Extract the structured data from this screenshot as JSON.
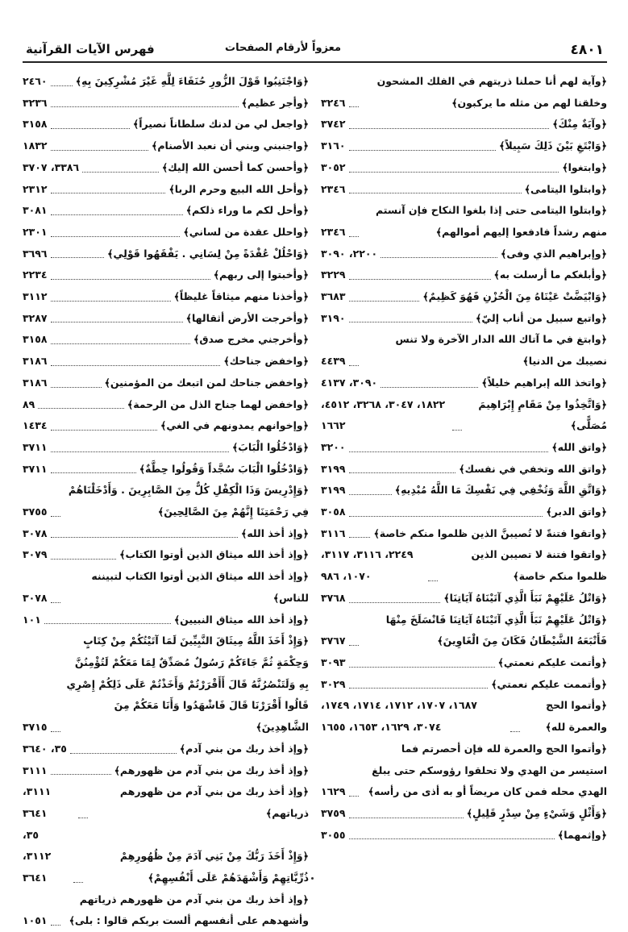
{
  "header": {
    "page_number": "٤٨٠١",
    "subtitle": "معزواً لأرقام الصفحات",
    "title": "فهرس الآيات القرآنية"
  },
  "right_column": [
    {
      "verse": "﴿وآية لهم أنا حملنا ذريتهم في الفلك المشحون وخلقنا لهم من مثله ما يركبون﴾",
      "pages": "٣٢٤٦"
    },
    {
      "verse": "﴿وآيَةٌ مِنْكَ﴾",
      "pages": "٣٧٤٢"
    },
    {
      "verse": "﴿وَابْتَغِ بَيْنَ ذَلِكَ سَبِيلاً﴾",
      "pages": "٣١٦٠"
    },
    {
      "verse": "﴿وابتغوا﴾",
      "pages": "٣٠٥٢"
    },
    {
      "verse": "﴿وابتلوا اليتامى﴾",
      "pages": "٢٣٤٦"
    },
    {
      "verse": "﴿وابتلوا اليتامى حتى إذا بلغوا النكاح فإن آنستم منهم رشداً فادفعوا إليهم أموالهم﴾",
      "pages": "٢٣٤٦"
    },
    {
      "verse": "﴿وإبراهيم الذي وفى﴾",
      "pages": "٢٢٠٠، ٣٠٩٠"
    },
    {
      "verse": "﴿وأبلغكم ما أرسلت به﴾",
      "pages": "٣٢٢٩"
    },
    {
      "verse": "﴿وَابْيَضَّتْ عَيْنَاهُ مِنَ الْحُزْنِ فَهُوَ كَظِيمٌ﴾",
      "pages": "٣٦٨٣"
    },
    {
      "verse": "﴿واتبع سبيل من أناب إليّ﴾",
      "pages": "٣١٩٠"
    },
    {
      "verse": "﴿وابتغ في ما آتاك الله الدار الآخرة ولا تنس نصيبك من الدنيا﴾",
      "pages": "٤٤٣٩"
    },
    {
      "verse": "﴿واتخذ الله إبراهيم خليلاً﴾",
      "pages": "٣٠٩٠، ٤١٣٧"
    },
    {
      "verse": "﴿وَاتَّخِذُوا مِنْ مَقَامِ إِبْرَاهِيمَ مُصَلًّى﴾",
      "pages": "١٨٢٢، ٣٠٤٧، ٣٢٦٨، ٤٥١٢، ١٦٦٢"
    },
    {
      "verse": "﴿واتق الله﴾",
      "pages": "٣٢٠٠"
    },
    {
      "verse": "﴿واتق الله وتخفي في نفسك﴾",
      "pages": "٣١٩٩"
    },
    {
      "verse": "﴿وَاتَّقِ اللَّهَ وَتُخْفِي فِي نَفْسِكَ مَا اللَّهُ مُبْدِيهِ﴾",
      "pages": "٣١٩٩"
    },
    {
      "verse": "﴿واتق الدبر﴾",
      "pages": "٣٠٥٨"
    },
    {
      "verse": "﴿واتقوا فتنةً لا تُصيبنَّ الذين ظلموا منكم خاصة﴾",
      "pages": "٣١١٦"
    },
    {
      "verse": "﴿واتقوا فتنة لا تصيبن الذين ظلموا منكم خاصة﴾",
      "pages": "٢٢٤٩، ٣١١٦، ٣١١٧، ١٠٧٠، ٩٨٦"
    },
    {
      "verse": "﴿وَاتْلُ عَلَيْهِمْ نَبَأَ الَّذِي آتَيْنَاهُ آيَاتِنَا﴾",
      "pages": "٣٧٦٨"
    },
    {
      "verse": "﴿وَاتْلُ عَلَيْهِمْ نَبَأَ الَّذِي آتَيْنَاهُ آيَاتِنَا فَانْسَلَخَ مِنْهَا فَأَتْبَعَهُ الشَّيْطَانُ فَكَانَ مِنَ الْغَاوِينَ﴾",
      "pages": "٣٧٦٧"
    },
    {
      "verse": "﴿وأتمت عليكم نعمتي﴾",
      "pages": "٣٠٩٣"
    },
    {
      "verse": "﴿وأتممت عليكم نعمتي﴾",
      "pages": "٣٠٢٩"
    },
    {
      "verse": "﴿وأتموا الحج والعمرة لله﴾",
      "pages": "١٦٨٧، ١٧٠٧، ١٧١٢، ١٧١٤، ١٧٤٩، ٣٠٧٤، ١٦٢٩، ١٦٥٣، ١٦٥٥"
    },
    {
      "verse": "﴿وأتموا الحج والعمرة لله فإن أحصرتم فما استيسر من الهدي ولا تحلقوا رؤوسكم حتى يبلغ الهدي محله فمن كان مريضاً أو به أذى من رأسه﴾",
      "pages": "١٦٢٩"
    },
    {
      "verse": "﴿وَأَثْلٍ وَشَيْءٍ مِنْ سِدْرٍ قَلِيلٍ﴾",
      "pages": "٣٧٥٩"
    },
    {
      "verse": "﴿وإثمهما﴾",
      "pages": "٣٠٥٥"
    }
  ],
  "left_column": [
    {
      "verse": "﴿وَاجْتَنِبُوا قَوْلَ الزُّورِ حُنَفَاءَ لِلَّهِ غَيْرَ مُشْرِكِينَ بِهِ﴾",
      "pages": "٢٤٦٠"
    },
    {
      "verse": "﴿وأجر عظيم﴾",
      "pages": "٣٢٣٦"
    },
    {
      "verse": "﴿واجعل لي من لدنك سلطاناً نصيراً﴾",
      "pages": "٣١٥٨"
    },
    {
      "verse": "﴿واجنبني وبني أن نعبد الأصنام﴾",
      "pages": "١٨٣٢"
    },
    {
      "verse": "﴿وأحسن كما أحسن الله إليك﴾",
      "pages": "٣٣٨٦، ٣٧٠٧"
    },
    {
      "verse": "﴿وأحل الله البيع وحرم الربا﴾",
      "pages": "٢٣١٢"
    },
    {
      "verse": "﴿وأحل لكم ما وراء ذلكم﴾",
      "pages": "٣٠٨١"
    },
    {
      "verse": "﴿واحلل عقدة من لساني﴾",
      "pages": "٢٣٠١"
    },
    {
      "verse": "﴿وَاحْلُلْ عُقْدَةً مِنْ لِسَانِي . يَفْقَهُوا قَوْلِي﴾",
      "pages": "٣٦٩٦"
    },
    {
      "verse": "﴿وأخبتوا إلى ربهم﴾",
      "pages": "٢٢٣٤"
    },
    {
      "verse": "﴿وأخذنا منهم ميثاقاً غليظاً﴾",
      "pages": "٣١١٢"
    },
    {
      "verse": "﴿وأخرجت الأرض أثقالها﴾",
      "pages": "٣٢٨٧"
    },
    {
      "verse": "﴿وأخرجني مخرج صدق﴾",
      "pages": "٣١٥٨"
    },
    {
      "verse": "﴿واخفض جناحك﴾",
      "pages": "٣١٨٦"
    },
    {
      "verse": "﴿واخفض جناحك لمن اتبعك من المؤمنين﴾",
      "pages": "٣١٨٦"
    },
    {
      "verse": "﴿واخفض لهما جناح الذل من الرحمة﴾",
      "pages": "٨٩"
    },
    {
      "verse": "﴿وإخوانهم يمدونهم في الغي﴾",
      "pages": "١٤٣٤"
    },
    {
      "verse": "﴿وَادْخُلُوا الْبَابَ﴾",
      "pages": "٣٧١١"
    },
    {
      "verse": "﴿وَادْخُلُوا الْبَابَ سُجَّداً وَقُولُوا حِطَّةٌ﴾",
      "pages": "٣٧١١"
    },
    {
      "verse": "﴿وَإِدْرِيسَ وَذَا الْكِفْلِ كُلٌّ مِنَ الصَّابِرِينَ . وَأَدْخَلْنَاهُمْ فِي رَحْمَتِنَا إِنَّهُمْ مِنَ الصَّالِحِينَ﴾",
      "pages": "٣٧٥٥"
    },
    {
      "verse": "﴿وإذ أخذ الله﴾",
      "pages": "٣٠٧٨"
    },
    {
      "verse": "﴿وإذ أخذ الله ميثاق الذين أوتوا الكتاب﴾",
      "pages": "٣٠٧٩"
    },
    {
      "verse": "﴿وإذ أخذ الله ميثاق الذين أوتوا الكتاب لتبيننه للناس﴾",
      "pages": "٣٠٧٨"
    },
    {
      "verse": "﴿وإذ أخذ الله ميثاق النبيين﴾",
      "pages": "١٠١"
    },
    {
      "verse": "﴿وَإِذْ أَخَذَ اللَّهُ مِيثَاقَ النَّبِيِّينَ لَمَا آتَيْتُكُمْ مِنْ كِتَابٍ وَحِكْمَةٍ ثُمَّ جَاءَكُمْ رَسُولٌ مُصَدِّقٌ لِمَا مَعَكُمْ لَتُؤْمِنُنَّ بِهِ وَلَتَنْصُرُنَّهُ قَالَ أَأَقْرَرْتُمْ وَأَخَذْتُمْ عَلَى ذَلِكُمْ إِصْرِي قَالُوا أَقْرَرْنَا قَالَ فَاشْهَدُوا وَأَنَا مَعَكُمْ مِنَ الشَّاهِدِينَ﴾",
      "pages": "٣٧١٥"
    },
    {
      "verse": "﴿وإذ أخذ ربك من بني آدم﴾",
      "pages": "٣٥، ٣٦٤٠"
    },
    {
      "verse": "﴿وإذ أخذ ربك من بني آدم من ظهورهم﴾",
      "pages": "٣١١١"
    },
    {
      "verse": "﴿وإذ أخذ ربك من بني آدم من ظهورهم ذرياتهم﴾",
      "pages": "٣١١١، ٣٦٤١"
    },
    {
      "verse": "﴿وَإِذْ أَخَذَ رَبُّكَ مِنْ بَنِي آدَمَ مِنْ ظُهُورِهِمْ ذُرِّيَّاتِهِمْ وَأَشْهَدَهُمْ عَلَى أَنْفُسِهِمْ﴾",
      "pages": "٣٥، ٣١١٢، ٣٦٤١"
    },
    {
      "verse": "﴿وإذ أخذ ربك من بني آدم من ظهورهم ذرياتهم وأشهدهم على أنفسهم ألست بربكم قالوا : بلى﴾",
      "pages": "١٠٥١"
    }
  ]
}
